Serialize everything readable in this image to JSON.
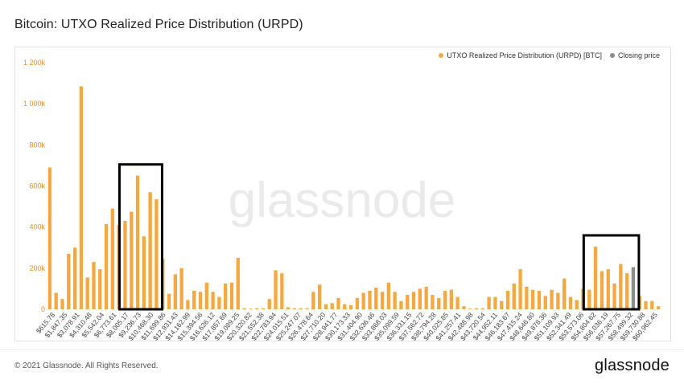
{
  "title": "Bitcoin: UTXO Realized Price Distribution (URPD)",
  "watermark": "glassnode",
  "brand": "glassnode",
  "copyright": "© 2021 Glassnode. All Rights Reserved.",
  "colors": {
    "bar": "#F7A73B",
    "closing": "#8C8C8C",
    "highlight_box": "#000000",
    "axis_text": "#F08A20"
  },
  "chart_data": {
    "type": "bar",
    "title": "Bitcoin: UTXO Realized Price Distribution (URPD)",
    "xlabel": "",
    "ylabel": "",
    "ylim": [
      0,
      1200000
    ],
    "yticks": [
      "0",
      "200k",
      "400k",
      "600k",
      "800k",
      "1 000k",
      "1 200k"
    ],
    "grid": false,
    "legend_position": "top-right",
    "series": [
      {
        "name": "UTXO Realized Price Distribution (URPD) [BTC]",
        "color": "#F7A73B"
      },
      {
        "name": "Closing price",
        "color": "#8C8C8C"
      }
    ],
    "x_tick_labels": [
      "$615.78",
      "$1,847.35",
      "$3,078.91",
      "$4,310.48",
      "$5,542.04",
      "$6,773.61",
      "$8,005.17",
      "$9,236.73",
      "$10,468.30",
      "$11,699.86",
      "$12,931.43",
      "$14,162.99",
      "$15,394.56",
      "$16,626.12",
      "$17,857.69",
      "$19,089.25",
      "$20,320.82",
      "$21,552.38",
      "$22,783.94",
      "$24,015.51",
      "$25,247.07",
      "$26,478.64",
      "$27,710.20",
      "$28,941.77",
      "$30,173.33",
      "$31,404.90",
      "$32,636.46",
      "$33,868.03",
      "$35,099.59",
      "$36,331.15",
      "$37,562.72",
      "$38,794.28",
      "$40,025.85",
      "$41,257.41",
      "$42,488.98",
      "$43,720.54",
      "$44,952.11",
      "$46,183.67",
      "$47,415.24",
      "$48,646.80",
      "$49,878.36",
      "$51,109.93",
      "$52,341.49",
      "$53,573.06",
      "$54,804.62",
      "$56,036.19",
      "$57,267.75",
      "$58,499.32",
      "$59,730.88",
      "$60,962.45"
    ],
    "values": [
      690000,
      80000,
      50000,
      270000,
      300000,
      1085000,
      155000,
      230000,
      195000,
      415000,
      490000,
      410000,
      430000,
      475000,
      650000,
      355000,
      570000,
      535000,
      245000,
      75000,
      170000,
      200000,
      45000,
      90000,
      85000,
      130000,
      85000,
      60000,
      125000,
      130000,
      250000,
      5000,
      3000,
      5000,
      5000,
      50000,
      190000,
      175000,
      10000,
      5000,
      5000,
      5000,
      85000,
      120000,
      25000,
      30000,
      55000,
      25000,
      20000,
      55000,
      80000,
      90000,
      105000,
      85000,
      130000,
      85000,
      40000,
      70000,
      85000,
      100000,
      110000,
      70000,
      55000,
      90000,
      95000,
      60000,
      15000,
      3000,
      5000,
      5000,
      60000,
      60000,
      40000,
      90000,
      125000,
      195000,
      110000,
      95000,
      90000,
      65000,
      95000,
      80000,
      150000,
      60000,
      45000,
      100000,
      95000,
      305000,
      185000,
      195000,
      125000,
      220000,
      175000,
      205000,
      65000,
      40000,
      40000,
      15000
    ],
    "closing_price_bar_index": 93,
    "highlight_boxes": [
      {
        "from_index": 12,
        "to_index": 17
      },
      {
        "from_index": 86,
        "to_index": 93
      }
    ]
  }
}
